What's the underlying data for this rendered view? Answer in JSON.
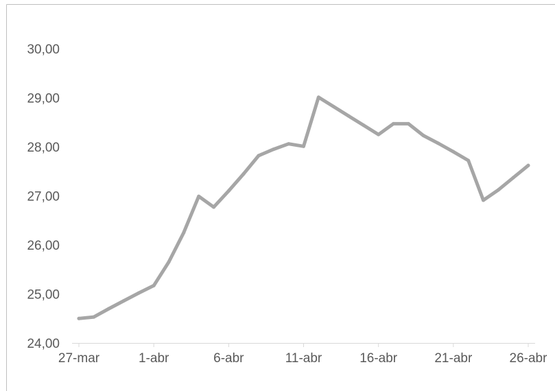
{
  "chart_data": {
    "type": "line",
    "title": "",
    "xlabel": "",
    "ylabel": "",
    "ylim": [
      24,
      30
    ],
    "y_ticks": [
      "24,00",
      "25,00",
      "26,00",
      "27,00",
      "28,00",
      "29,00",
      "30,00"
    ],
    "x_ticks": [
      "27-mar",
      "1-abr",
      "6-abr",
      "11-abr",
      "16-abr",
      "21-abr",
      "26-abr"
    ],
    "grid": false,
    "legend": "none",
    "series": [
      {
        "color": "#a6a6a6",
        "x": [
          "27-mar",
          "28-mar",
          "29-mar",
          "30-mar",
          "31-mar",
          "1-abr",
          "2-abr",
          "3-abr",
          "4-abr",
          "5-abr",
          "6-abr",
          "7-abr",
          "8-abr",
          "9-abr",
          "10-abr",
          "11-abr",
          "12-abr",
          "13-abr",
          "14-abr",
          "15-abr",
          "16-abr",
          "17-abr",
          "18-abr",
          "19-abr",
          "20-abr",
          "21-abr",
          "22-abr",
          "23-abr",
          "24-abr",
          "25-abr",
          "26-abr"
        ],
        "values": [
          24.5,
          24.53,
          24.7,
          24.86,
          25.02,
          25.17,
          25.65,
          26.25,
          26.99,
          26.77,
          27.1,
          27.45,
          27.82,
          27.95,
          28.06,
          28.01,
          29.01,
          28.82,
          28.63,
          28.44,
          28.25,
          28.47,
          28.47,
          28.23,
          28.07,
          27.9,
          27.72,
          26.91,
          27.12,
          27.37,
          27.62
        ]
      }
    ]
  }
}
